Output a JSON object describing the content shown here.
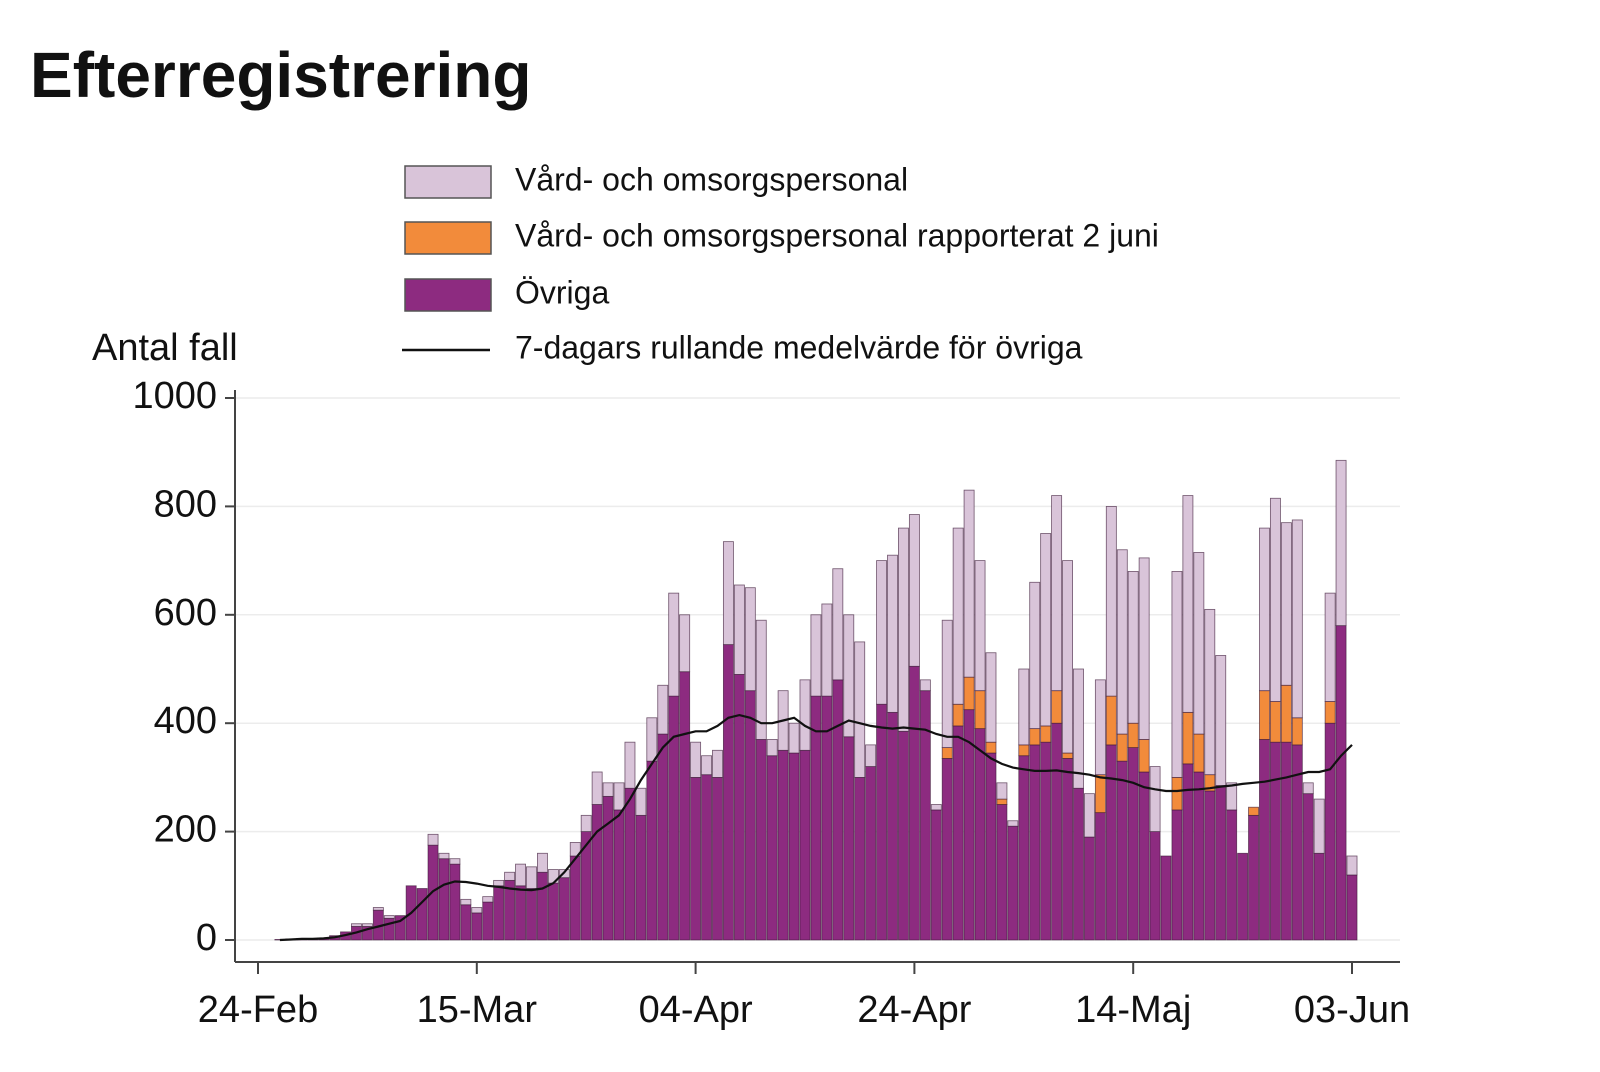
{
  "chart_data": {
    "type": "bar",
    "stacked": true,
    "title": "Efterregistrering",
    "y_label": "Antal fall",
    "ylim": [
      0,
      1000
    ],
    "yticks": [
      0,
      200,
      400,
      600,
      800,
      1000
    ],
    "grid": true,
    "categories": [
      "24-Feb",
      "25-Feb",
      "26-Feb",
      "27-Feb",
      "28-Feb",
      "29-Feb",
      "01-Mar",
      "02-Mar",
      "03-Mar",
      "04-Mar",
      "05-Mar",
      "06-Mar",
      "07-Mar",
      "08-Mar",
      "09-Mar",
      "10-Mar",
      "11-Mar",
      "12-Mar",
      "13-Mar",
      "14-Mar",
      "15-Mar",
      "16-Mar",
      "17-Mar",
      "18-Mar",
      "19-Mar",
      "20-Mar",
      "21-Mar",
      "22-Mar",
      "23-Mar",
      "24-Mar",
      "25-Mar",
      "26-Mar",
      "27-Mar",
      "28-Mar",
      "29-Mar",
      "30-Mar",
      "31-Mar",
      "01-Apr",
      "02-Apr",
      "03-Apr",
      "04-Apr",
      "05-Apr",
      "06-Apr",
      "07-Apr",
      "08-Apr",
      "09-Apr",
      "10-Apr",
      "11-Apr",
      "12-Apr",
      "13-Apr",
      "14-Apr",
      "15-Apr",
      "16-Apr",
      "17-Apr",
      "18-Apr",
      "19-Apr",
      "20-Apr",
      "21-Apr",
      "22-Apr",
      "23-Apr",
      "24-Apr",
      "25-Apr",
      "26-Apr",
      "27-Apr",
      "28-Apr",
      "29-Apr",
      "30-Apr",
      "01-Maj",
      "02-Maj",
      "03-Maj",
      "04-Maj",
      "05-Maj",
      "06-Maj",
      "07-Maj",
      "08-Maj",
      "09-Maj",
      "10-Maj",
      "11-Maj",
      "12-Maj",
      "13-Maj",
      "14-Maj",
      "15-Maj",
      "16-Maj",
      "17-Maj",
      "18-Maj",
      "19-Maj",
      "20-Maj",
      "21-Maj",
      "22-Maj",
      "23-Maj",
      "24-Maj",
      "25-Maj",
      "26-Maj",
      "27-Maj",
      "28-Maj",
      "29-Maj",
      "30-Maj",
      "31-Maj",
      "01-Jun",
      "02-Jun",
      "03-Jun"
    ],
    "xticks": [
      "24-Feb",
      "15-Mar",
      "04-Apr",
      "24-Apr",
      "14-Maj",
      "03-Jun"
    ],
    "series": [
      {
        "name": "Vård- och omsorgspersonal",
        "color": "#d9c4d9",
        "values": [
          0,
          0,
          0,
          0,
          0,
          0,
          0,
          0,
          0,
          5,
          5,
          5,
          5,
          0,
          0,
          0,
          20,
          10,
          10,
          10,
          10,
          10,
          10,
          15,
          40,
          40,
          35,
          25,
          15,
          25,
          30,
          60,
          25,
          50,
          85,
          50,
          80,
          90,
          190,
          105,
          65,
          35,
          50,
          190,
          165,
          190,
          220,
          30,
          110,
          55,
          130,
          150,
          170,
          205,
          225,
          250,
          40,
          265,
          290,
          375,
          280,
          20,
          10,
          235,
          325,
          345,
          240,
          165,
          30,
          10,
          140,
          270,
          355,
          360,
          355,
          220,
          80,
          175,
          350,
          340,
          280,
          335,
          120,
          0,
          380,
          400,
          335,
          305,
          240,
          50,
          0,
          0,
          300,
          375,
          300,
          365,
          20,
          100,
          200,
          305,
          35
        ]
      },
      {
        "name": "Vård- och omsorgspersonal rapporterat 2 juni",
        "color": "#f28b3b",
        "values": [
          0,
          0,
          0,
          0,
          0,
          0,
          0,
          0,
          0,
          0,
          0,
          0,
          0,
          0,
          0,
          0,
          0,
          0,
          0,
          0,
          0,
          0,
          0,
          0,
          0,
          0,
          0,
          0,
          0,
          0,
          0,
          0,
          0,
          0,
          0,
          0,
          0,
          0,
          0,
          0,
          0,
          0,
          0,
          0,
          0,
          0,
          0,
          0,
          0,
          0,
          0,
          0,
          0,
          0,
          0,
          0,
          0,
          0,
          0,
          0,
          0,
          0,
          0,
          20,
          40,
          60,
          70,
          20,
          10,
          0,
          20,
          30,
          30,
          60,
          10,
          0,
          0,
          70,
          90,
          50,
          45,
          60,
          0,
          0,
          60,
          95,
          70,
          30,
          0,
          0,
          0,
          15,
          90,
          75,
          105,
          50,
          0,
          0,
          40,
          0,
          0
        ]
      },
      {
        "name": "Övriga",
        "color": "#8d2b80",
        "values": [
          0,
          0,
          1,
          2,
          3,
          2,
          3,
          8,
          15,
          25,
          25,
          55,
          40,
          45,
          100,
          95,
          175,
          150,
          140,
          65,
          50,
          70,
          100,
          110,
          100,
          95,
          125,
          105,
          115,
          155,
          200,
          250,
          265,
          240,
          280,
          230,
          330,
          380,
          450,
          495,
          300,
          305,
          300,
          545,
          490,
          460,
          370,
          340,
          350,
          345,
          350,
          450,
          450,
          480,
          375,
          300,
          320,
          435,
          420,
          385,
          505,
          460,
          240,
          335,
          395,
          425,
          390,
          345,
          250,
          210,
          340,
          360,
          365,
          400,
          335,
          280,
          190,
          235,
          360,
          330,
          355,
          310,
          200,
          155,
          240,
          325,
          310,
          275,
          285,
          240,
          160,
          230,
          370,
          365,
          365,
          360,
          270,
          160,
          400,
          580,
          120
        ]
      },
      {
        "name": "7-dagars rullande medelvärde för övriga",
        "type": "line",
        "color": "#111111",
        "values": [
          null,
          null,
          0,
          1,
          2,
          2,
          3,
          5,
          9,
          14,
          20,
          25,
          30,
          35,
          50,
          70,
          90,
          102,
          108,
          107,
          104,
          100,
          98,
          95,
          93,
          92,
          95,
          105,
          125,
          150,
          175,
          200,
          215,
          230,
          260,
          295,
          325,
          355,
          375,
          380,
          385,
          385,
          395,
          410,
          415,
          410,
          400,
          400,
          405,
          410,
          395,
          385,
          385,
          395,
          405,
          400,
          395,
          392,
          390,
          392,
          390,
          388,
          380,
          375,
          375,
          365,
          350,
          335,
          325,
          318,
          315,
          312,
          312,
          313,
          310,
          308,
          305,
          300,
          298,
          295,
          290,
          282,
          278,
          275,
          275,
          277,
          278,
          280,
          283,
          285,
          288,
          290,
          292,
          296,
          300,
          305,
          310,
          310,
          315,
          340,
          360
        ]
      }
    ]
  }
}
